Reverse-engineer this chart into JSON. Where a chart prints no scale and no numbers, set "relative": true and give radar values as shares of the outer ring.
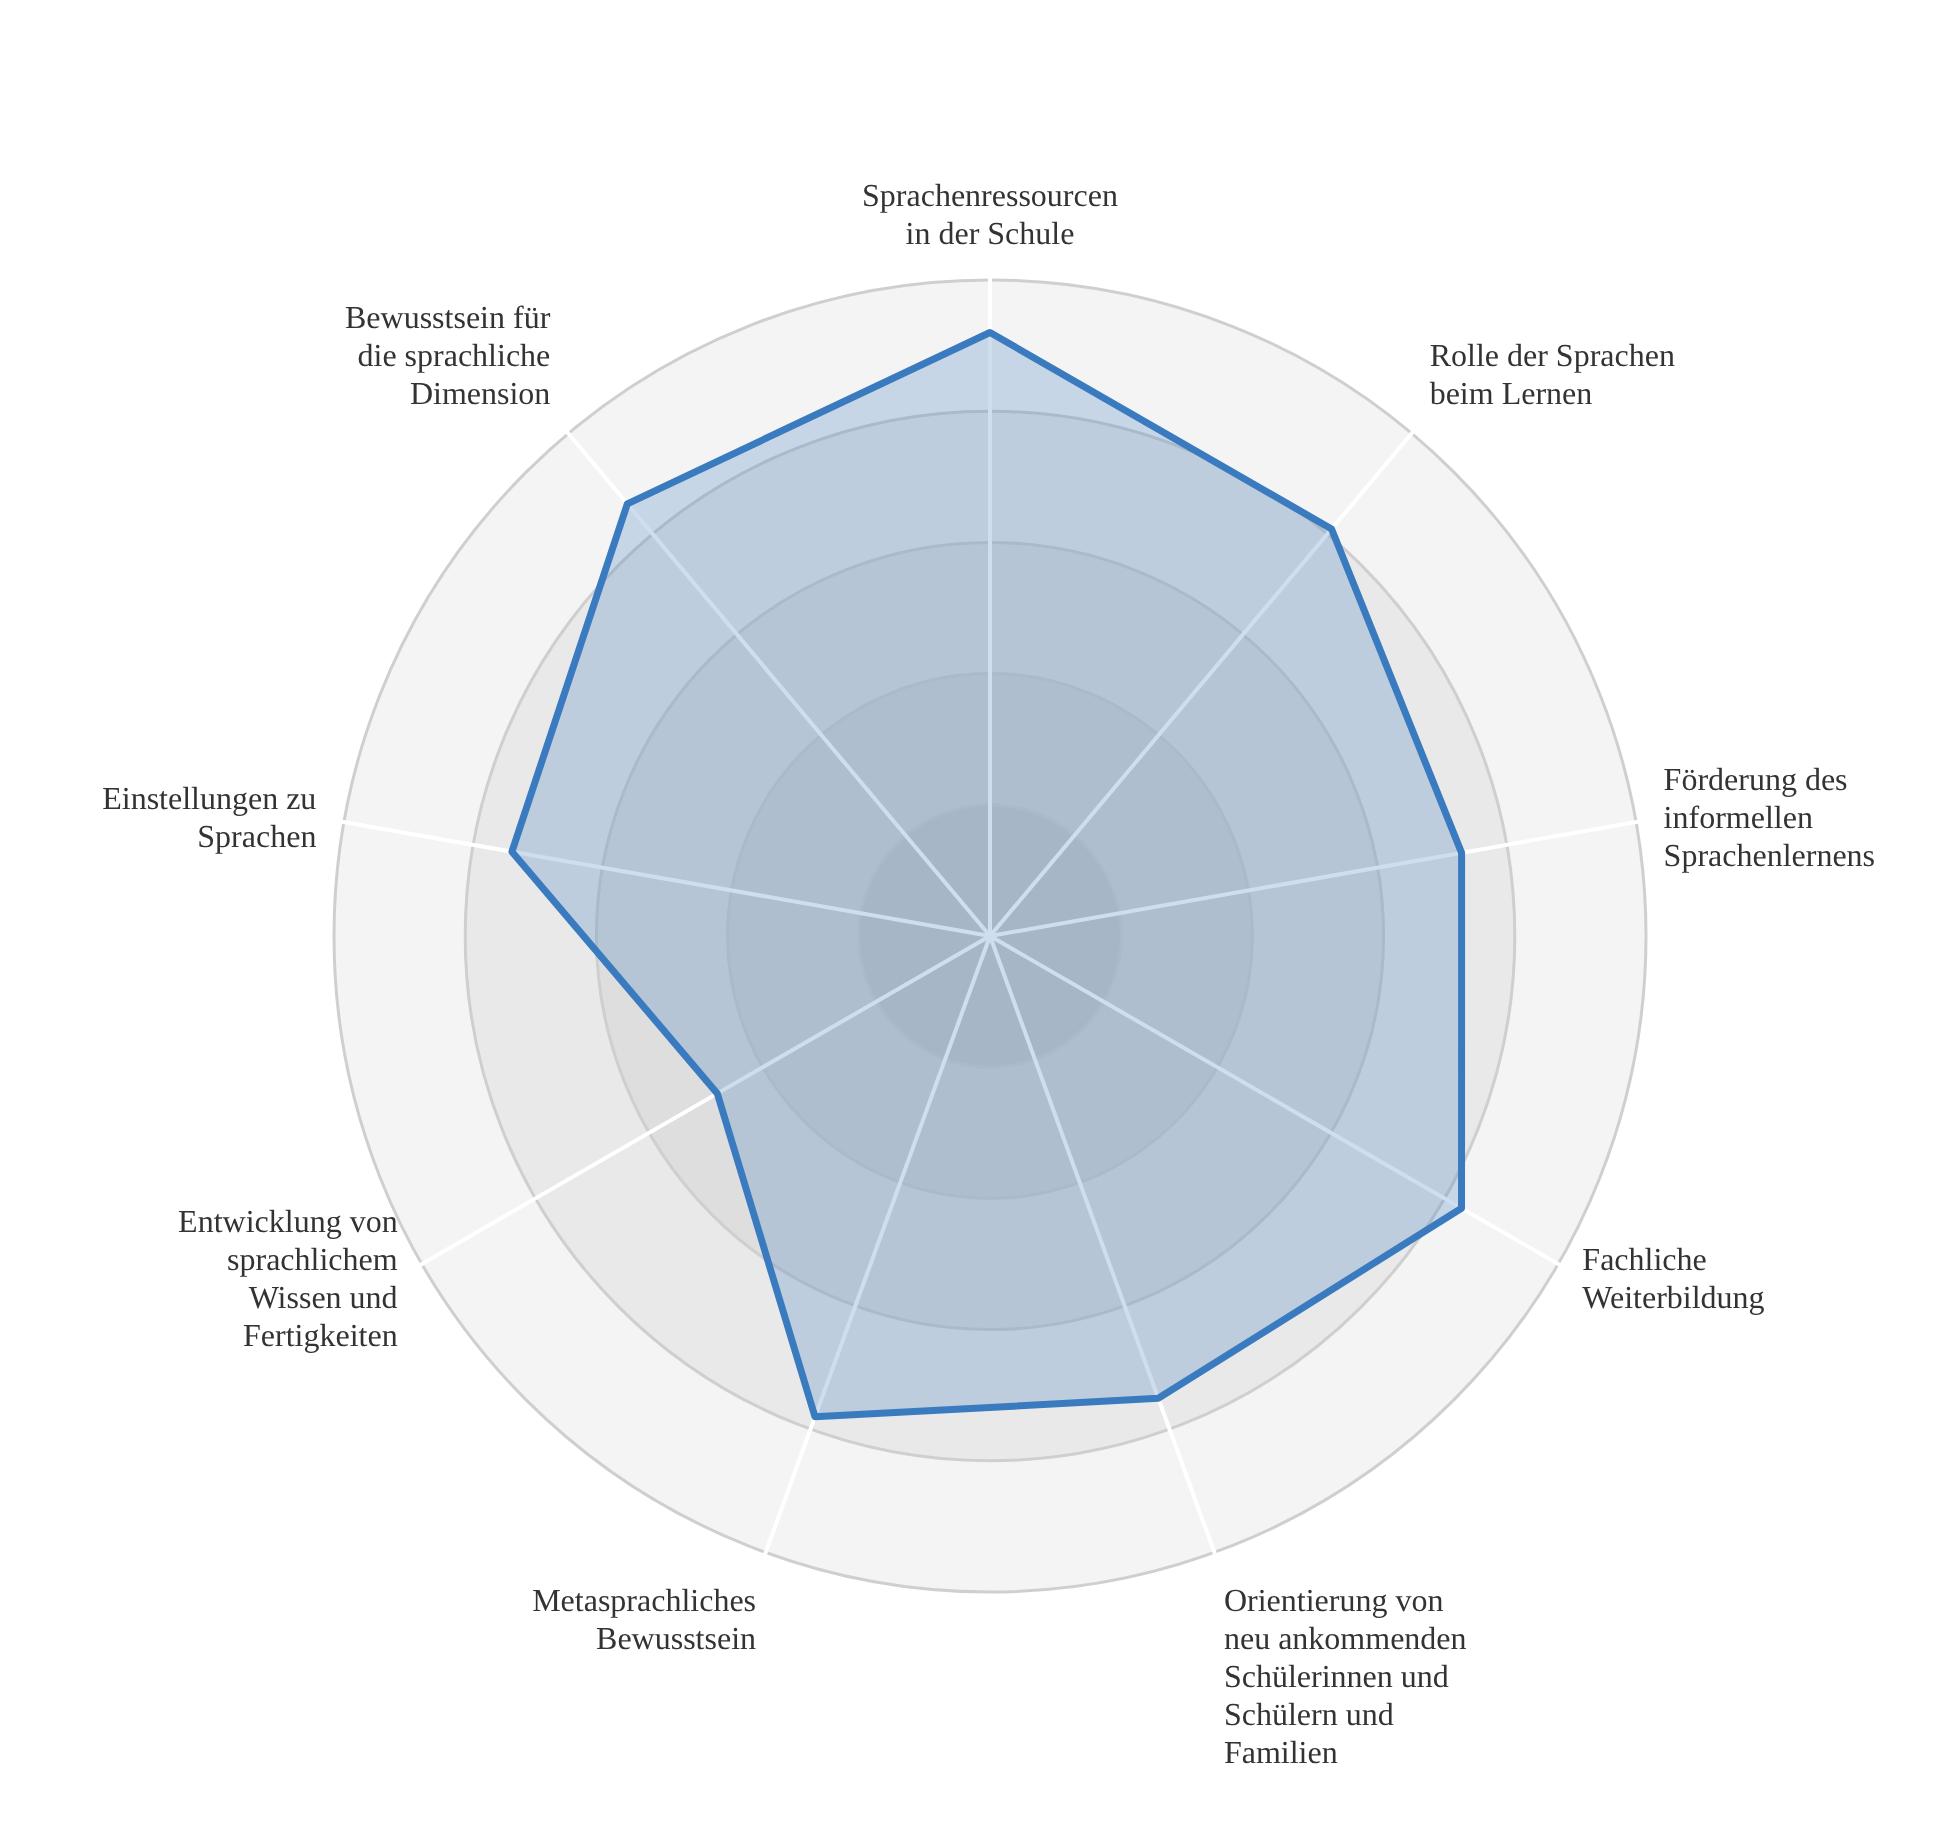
{
  "chart_data": {
    "type": "radar",
    "relative": true,
    "grid": true,
    "categories": [
      "Sprachenressourcen in der Schule",
      "Rolle der Sprachen beim Lernen",
      "Förderung des informellen Sprachenlernens",
      "Fachliche Weiterbildung",
      "Orientierung von neu ankommenden Schülerinnen und Schülern und Familien",
      "Metasprachliches Bewusstsein",
      "Entwicklung von sprachlichem Wissen und Fertigkeiten",
      "Einstellungen zu Sprachen",
      "Bewusstsein für die sprachliche Dimension"
    ],
    "series": [
      {
        "color": "#3a7bbf",
        "values": [
          0.92,
          0.81,
          0.73,
          0.83,
          0.75,
          0.78,
          0.48,
          0.74,
          0.86
        ]
      }
    ]
  }
}
